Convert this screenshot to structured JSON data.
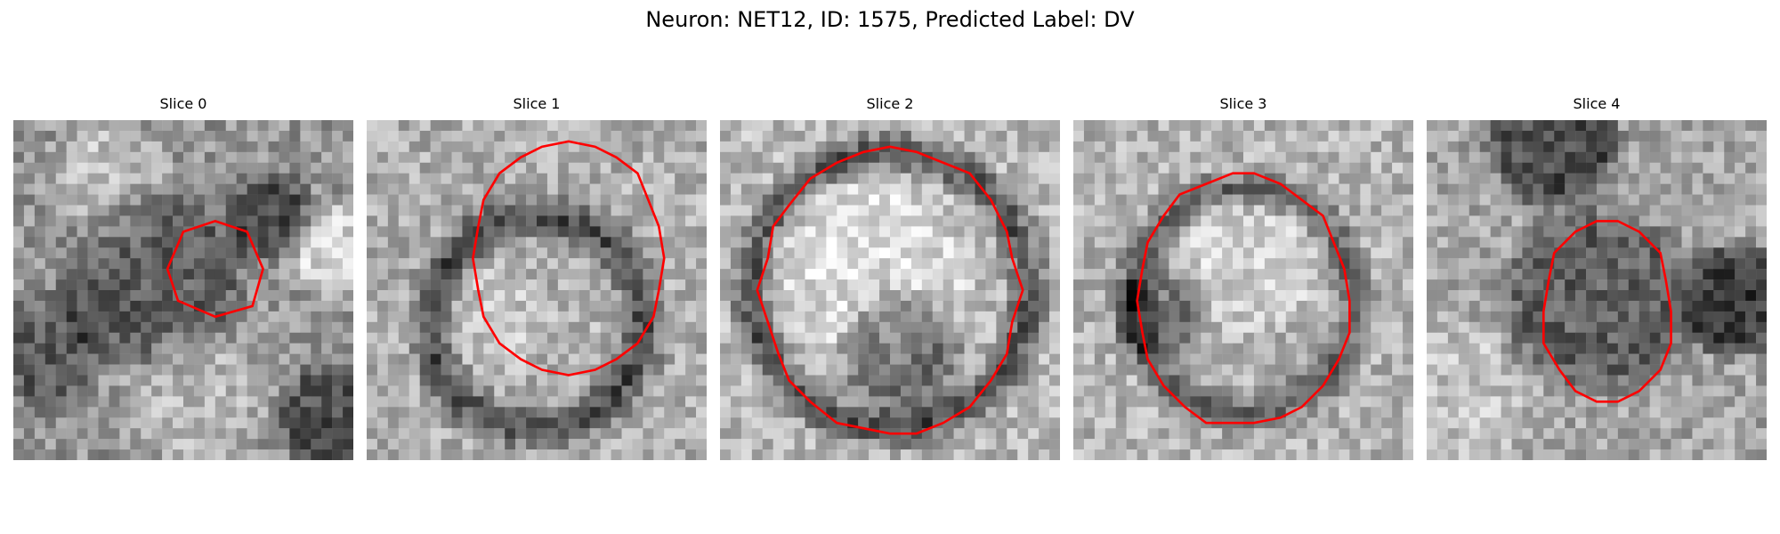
{
  "figure": {
    "title": "Neuron: NET12, ID: 1575, Predicted Label: DV",
    "contour_color": "#ff0000"
  },
  "panels": [
    {
      "title": "Slice 0",
      "contour_shape": "small-octagon-center-right"
    },
    {
      "title": "Slice 1",
      "contour_shape": "tall-ellipse-upper-right"
    },
    {
      "title": "Slice 2",
      "contour_shape": "large-circle-full"
    },
    {
      "title": "Slice 3",
      "contour_shape": "medium-circle-lower"
    },
    {
      "title": "Slice 4",
      "contour_shape": "medium-ellipse-center-right"
    }
  ]
}
